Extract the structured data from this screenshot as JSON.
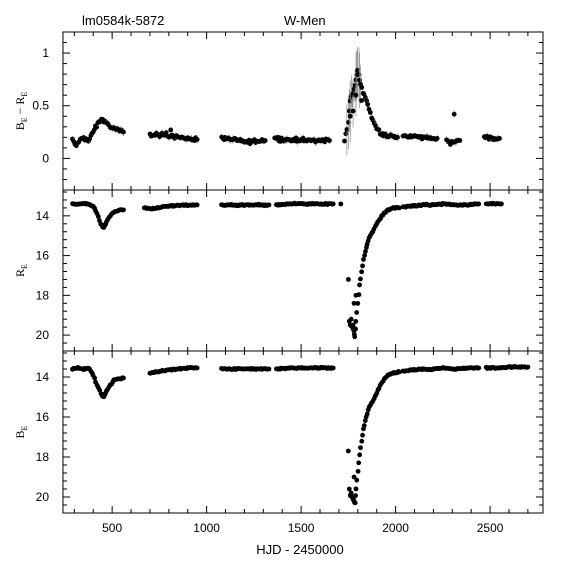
{
  "figure": {
    "left_title": "lm0584k-5872",
    "center_title": "W-Men",
    "xlabel": "HJD - 2450000"
  },
  "chart_data": [
    {
      "type": "scatter",
      "panel": "color",
      "ylabel_main": "B",
      "ylabel_sub": "E",
      "ylabel_sep": "−",
      "ylabel_main2": "R",
      "ylabel_sub2": "E",
      "xlim": [
        240,
        2780
      ],
      "ylim": [
        -0.3,
        1.2
      ],
      "inverted": false,
      "yticks": [
        0,
        0.5,
        1
      ],
      "ytick_labels": [
        "0",
        "0.5",
        "1"
      ],
      "error_bars": true,
      "segments": [
        [
          [
            290,
            0.17
          ],
          [
            310,
            0.12
          ],
          [
            330,
            0.18
          ],
          [
            350,
            0.2
          ],
          [
            375,
            0.16
          ],
          [
            400,
            0.25
          ],
          [
            430,
            0.35
          ],
          [
            450,
            0.37
          ],
          [
            470,
            0.34
          ],
          [
            490,
            0.3
          ],
          [
            515,
            0.28
          ],
          [
            540,
            0.26
          ],
          [
            560,
            0.25
          ]
        ],
        [
          [
            700,
            0.23
          ],
          [
            740,
            0.22
          ],
          [
            780,
            0.23
          ],
          [
            820,
            0.21
          ],
          [
            860,
            0.2
          ],
          [
            900,
            0.19
          ],
          [
            950,
            0.18
          ]
        ],
        [
          [
            1080,
            0.2
          ],
          [
            1110,
            0.18
          ],
          [
            1150,
            0.17
          ],
          [
            1190,
            0.16
          ],
          [
            1230,
            0.16
          ],
          [
            1270,
            0.17
          ],
          [
            1310,
            0.17
          ]
        ],
        [
          [
            1360,
            0.19
          ],
          [
            1420,
            0.18
          ],
          [
            1480,
            0.18
          ],
          [
            1540,
            0.17
          ],
          [
            1600,
            0.17
          ],
          [
            1650,
            0.17
          ]
        ],
        [
          [
            1730,
            0.17
          ],
          [
            1750,
            0.35
          ],
          [
            1760,
            0.55
          ],
          [
            1775,
            0.62
          ],
          [
            1790,
            0.75
          ],
          [
            1800,
            0.83
          ],
          [
            1815,
            0.7
          ],
          [
            1840,
            0.58
          ],
          [
            1860,
            0.47
          ],
          [
            1880,
            0.36
          ],
          [
            1900,
            0.28
          ],
          [
            1930,
            0.23
          ],
          [
            1970,
            0.21
          ],
          [
            2010,
            0.2
          ]
        ],
        [
          [
            2040,
            0.21
          ],
          [
            2090,
            0.21
          ],
          [
            2140,
            0.2
          ],
          [
            2190,
            0.19
          ],
          [
            2220,
            0.19
          ]
        ],
        [
          [
            2270,
            0.17
          ],
          [
            2290,
            0.15
          ],
          [
            2310,
            0.16
          ],
          [
            2340,
            0.17
          ]
        ],
        [
          [
            2470,
            0.2
          ],
          [
            2510,
            0.19
          ],
          [
            2550,
            0.19
          ]
        ]
      ],
      "outliers": [
        [
          1760,
          0.4
        ],
        [
          1775,
          0.45
        ],
        [
          1790,
          0.6
        ],
        [
          1820,
          0.55
        ],
        [
          2310,
          0.42
        ],
        [
          810,
          0.27
        ]
      ]
    },
    {
      "type": "scatter",
      "panel": "R",
      "ylabel_main": "R",
      "ylabel_sub": "E",
      "xlim": [
        240,
        2780
      ],
      "ylim": [
        12.7,
        20.8
      ],
      "inverted": true,
      "yticks": [
        14,
        16,
        18,
        20
      ],
      "ytick_labels": [
        "14",
        "16",
        "18",
        "20"
      ],
      "error_bars": false,
      "segments": [
        [
          [
            290,
            13.4
          ],
          [
            330,
            13.4
          ],
          [
            370,
            13.4
          ],
          [
            400,
            13.5
          ],
          [
            420,
            13.9
          ],
          [
            440,
            14.4
          ],
          [
            455,
            14.6
          ],
          [
            470,
            14.3
          ],
          [
            490,
            14.0
          ],
          [
            510,
            13.8
          ],
          [
            540,
            13.7
          ],
          [
            560,
            13.7
          ]
        ],
        [
          [
            670,
            13.6
          ],
          [
            710,
            13.65
          ],
          [
            760,
            13.55
          ],
          [
            820,
            13.5
          ],
          [
            880,
            13.45
          ],
          [
            950,
            13.45
          ]
        ],
        [
          [
            1080,
            13.45
          ],
          [
            1130,
            13.45
          ],
          [
            1180,
            13.45
          ],
          [
            1230,
            13.45
          ],
          [
            1280,
            13.45
          ],
          [
            1330,
            13.45
          ]
        ],
        [
          [
            1370,
            13.45
          ],
          [
            1430,
            13.4
          ],
          [
            1490,
            13.4
          ],
          [
            1550,
            13.4
          ],
          [
            1610,
            13.4
          ],
          [
            1670,
            13.4
          ]
        ],
        [
          [
            1710,
            13.4
          ]
        ],
        [
          [
            1760,
            19.5
          ],
          [
            1770,
            19.6
          ],
          [
            1780,
            19.8
          ],
          [
            1785,
            20.1
          ],
          [
            1790,
            19.3
          ],
          [
            1800,
            18.4
          ],
          [
            1810,
            17.5
          ],
          [
            1820,
            16.8
          ],
          [
            1830,
            16.2
          ],
          [
            1845,
            15.6
          ],
          [
            1860,
            15.1
          ],
          [
            1880,
            14.8
          ],
          [
            1900,
            14.4
          ],
          [
            1920,
            14.1
          ],
          [
            1940,
            13.85
          ],
          [
            1960,
            13.7
          ],
          [
            1990,
            13.6
          ],
          [
            2020,
            13.6
          ]
        ],
        [
          [
            2040,
            13.55
          ],
          [
            2090,
            13.5
          ],
          [
            2140,
            13.45
          ],
          [
            2200,
            13.45
          ],
          [
            2260,
            13.4
          ],
          [
            2320,
            13.45
          ],
          [
            2380,
            13.45
          ],
          [
            2440,
            13.4
          ]
        ],
        [
          [
            2480,
            13.4
          ],
          [
            2520,
            13.4
          ],
          [
            2560,
            13.4
          ]
        ]
      ],
      "outliers": [
        [
          1750,
          17.2
        ],
        [
          1755,
          19.3
        ],
        [
          1765,
          19.2
        ],
        [
          1775,
          19.5
        ],
        [
          1780,
          18.4
        ],
        [
          1790,
          18.0
        ]
      ]
    },
    {
      "type": "scatter",
      "panel": "B",
      "ylabel_main": "B",
      "ylabel_sub": "E",
      "xlim": [
        240,
        2780
      ],
      "ylim": [
        12.7,
        20.8
      ],
      "inverted": true,
      "yticks": [
        14,
        16,
        18,
        20
      ],
      "ytick_labels": [
        "14",
        "16",
        "18",
        "20"
      ],
      "error_bars": false,
      "segments": [
        [
          [
            290,
            13.6
          ],
          [
            320,
            13.55
          ],
          [
            350,
            13.6
          ],
          [
            380,
            13.6
          ],
          [
            400,
            13.9
          ],
          [
            420,
            14.4
          ],
          [
            440,
            14.8
          ],
          [
            455,
            15.0
          ],
          [
            470,
            14.7
          ],
          [
            490,
            14.4
          ],
          [
            510,
            14.15
          ],
          [
            540,
            14.1
          ],
          [
            560,
            14.05
          ]
        ],
        [
          [
            700,
            13.8
          ],
          [
            740,
            13.75
          ],
          [
            790,
            13.65
          ],
          [
            840,
            13.6
          ],
          [
            900,
            13.55
          ],
          [
            950,
            13.55
          ]
        ],
        [
          [
            1080,
            13.6
          ],
          [
            1130,
            13.6
          ],
          [
            1180,
            13.6
          ],
          [
            1230,
            13.6
          ],
          [
            1280,
            13.6
          ],
          [
            1330,
            13.6
          ]
        ],
        [
          [
            1370,
            13.6
          ],
          [
            1430,
            13.55
          ],
          [
            1490,
            13.55
          ],
          [
            1550,
            13.55
          ],
          [
            1610,
            13.55
          ],
          [
            1670,
            13.55
          ]
        ],
        [
          [
            1760,
            19.9
          ],
          [
            1770,
            20.0
          ],
          [
            1780,
            20.2
          ],
          [
            1785,
            20.3
          ],
          [
            1790,
            19.6
          ],
          [
            1800,
            18.7
          ],
          [
            1810,
            17.9
          ],
          [
            1820,
            17.2
          ],
          [
            1830,
            16.6
          ],
          [
            1845,
            16.0
          ],
          [
            1860,
            15.5
          ],
          [
            1880,
            15.2
          ],
          [
            1900,
            14.8
          ],
          [
            1920,
            14.4
          ],
          [
            1940,
            14.1
          ],
          [
            1960,
            13.9
          ],
          [
            1990,
            13.8
          ],
          [
            2020,
            13.75
          ]
        ],
        [
          [
            2040,
            13.7
          ],
          [
            2090,
            13.65
          ],
          [
            2140,
            13.6
          ],
          [
            2200,
            13.6
          ],
          [
            2260,
            13.55
          ],
          [
            2320,
            13.6
          ],
          [
            2380,
            13.55
          ],
          [
            2440,
            13.55
          ]
        ],
        [
          [
            2480,
            13.55
          ],
          [
            2540,
            13.55
          ],
          [
            2600,
            13.5
          ],
          [
            2660,
            13.5
          ],
          [
            2700,
            13.5
          ]
        ]
      ],
      "outliers": [
        [
          1750,
          17.7
        ],
        [
          1755,
          19.6
        ],
        [
          1765,
          19.8
        ],
        [
          1775,
          20.1
        ],
        [
          1780,
          19.0
        ]
      ]
    }
  ],
  "x_axis": {
    "ticks": [
      500,
      1000,
      1500,
      2000,
      2500
    ],
    "tick_labels": [
      "500",
      "1000",
      "1500",
      "2000",
      "2500"
    ]
  },
  "colors": {
    "points": "#000000",
    "errorbars": "#888888",
    "frame": "#000000"
  }
}
